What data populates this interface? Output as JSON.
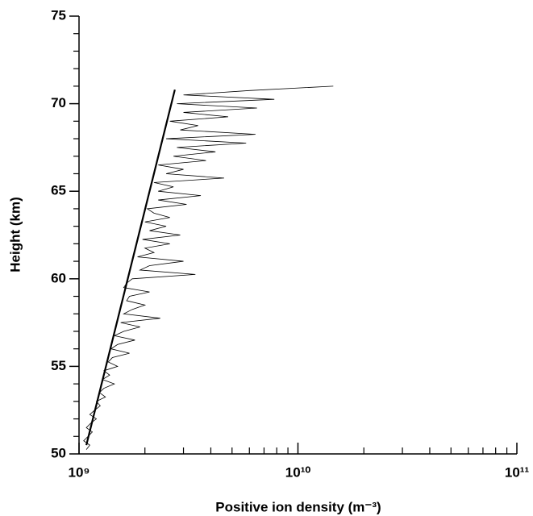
{
  "chart_data": {
    "type": "line",
    "xlabel": "Positive ion density (m⁻³)",
    "ylabel": "Height (km)",
    "xscale": "log",
    "xlim": [
      1000000000.0,
      100000000000.0
    ],
    "ylim": [
      50,
      75
    ],
    "xticks": [
      {
        "value": 1000000000.0,
        "label": "10⁹"
      },
      {
        "value": 10000000000.0,
        "label": "10¹⁰"
      },
      {
        "value": 100000000000.0,
        "label": "10¹¹"
      }
    ],
    "xminorticks": [
      2000000000.0,
      3000000000.0,
      4000000000.0,
      5000000000.0,
      6000000000.0,
      7000000000.0,
      8000000000.0,
      9000000000.0,
      20000000000.0,
      30000000000.0,
      40000000000.0,
      50000000000.0,
      60000000000.0,
      70000000000.0,
      80000000000.0,
      90000000000.0
    ],
    "yticks": [
      50,
      55,
      60,
      65,
      70,
      75
    ],
    "yminorticks": [
      51,
      52,
      53,
      54,
      56,
      57,
      58,
      59,
      61,
      62,
      63,
      64,
      66,
      67,
      68,
      69,
      71,
      72,
      73,
      74
    ],
    "series": [
      {
        "color": "#000000",
        "width": 0.8,
        "x": [
          1080000000.0,
          1120000000.0,
          1050000000.0,
          1100000000.0,
          1150000000.0,
          1080000000.0,
          1130000000.0,
          1200000000.0,
          1120000000.0,
          1180000000.0,
          1250000000.0,
          1200000000.0,
          1320000000.0,
          1240000000.0,
          1300000000.0,
          1450000000.0,
          1280000000.0,
          1380000000.0,
          1300000000.0,
          1500000000.0,
          1360000000.0,
          1420000000.0,
          1700000000.0,
          1400000000.0,
          1500000000.0,
          1800000000.0,
          1450000000.0,
          1600000000.0,
          1900000000.0,
          1550000000.0,
          2350000000.0,
          1600000000.0,
          1750000000.0,
          2000000000.0,
          1650000000.0,
          1700000000.0,
          2100000000.0,
          1600000000.0,
          1650000000.0,
          1750000000.0,
          3400000000.0,
          1900000000.0,
          2100000000.0,
          3000000000.0,
          1850000000.0,
          2200000000.0,
          2000000000.0,
          2600000000.0,
          1950000000.0,
          2900000000.0,
          2100000000.0,
          2500000000.0,
          2000000000.0,
          2600000000.0,
          2200000000.0,
          2050000000.0,
          3100000000.0,
          2300000000.0,
          3600000000.0,
          2300000000.0,
          2700000000.0,
          2200000000.0,
          4600000000.0,
          2500000000.0,
          3000000000.0,
          2300000000.0,
          3800000000.0,
          2700000000.0,
          4200000000.0,
          2800000000.0,
          5800000000.0,
          2500000000.0,
          6400000000.0,
          2900000000.0,
          3500000000.0,
          2600000000.0,
          4800000000.0,
          3000000000.0,
          6500000000.0,
          2800000000.0,
          7800000000.0,
          3000000000.0,
          6000000000.0,
          14500000000.0
        ],
        "y": [
          50.25,
          50.5,
          50.75,
          51,
          51.25,
          51.5,
          51.75,
          52,
          52.25,
          52.5,
          52.75,
          53,
          53.25,
          53.5,
          53.75,
          54,
          54.25,
          54.5,
          54.75,
          55,
          55.25,
          55.5,
          55.75,
          56,
          56.25,
          56.5,
          56.75,
          57,
          57.25,
          57.5,
          57.75,
          58,
          58.25,
          58.5,
          58.75,
          59,
          59.25,
          59.5,
          59.75,
          60,
          60.25,
          60.5,
          60.75,
          61,
          61.25,
          61.5,
          61.75,
          62,
          62.25,
          62.5,
          62.75,
          63,
          63.25,
          63.5,
          63.75,
          64,
          64.25,
          64.5,
          64.75,
          65,
          65.25,
          65.5,
          65.75,
          66,
          66.25,
          66.5,
          66.75,
          67,
          67.25,
          67.5,
          67.75,
          68,
          68.25,
          68.5,
          68.75,
          69,
          69.25,
          69.5,
          69.75,
          70,
          70.25,
          70.5,
          70.75,
          71
        ]
      },
      {
        "color": "#000000",
        "width": 2.2,
        "x": [
          1080000000.0,
          2740000000.0
        ],
        "y": [
          50.5,
          70.8
        ]
      }
    ]
  }
}
